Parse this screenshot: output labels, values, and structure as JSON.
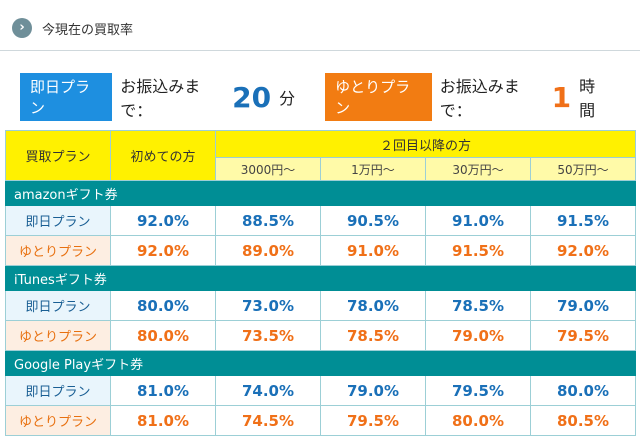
{
  "header": {
    "title": "今現在の買取率"
  },
  "plans": [
    {
      "label": "即日プラン",
      "text": "お振込みまで：",
      "num": "20",
      "unit": "分"
    },
    {
      "label": "ゆとりプラン",
      "text": "お振込みまで：",
      "num": "1",
      "unit": "時間"
    }
  ],
  "table": {
    "col_plan": "買取プラン",
    "col_first": "初めての方",
    "col_group": "２回目以降の方",
    "subs": [
      "3000円～",
      "1万円～",
      "30万円～",
      "50万円～"
    ],
    "sections": [
      {
        "name": "amazonギフト券",
        "rows": [
          {
            "plan": "即日プラン",
            "rates": [
              "92.0%",
              "88.5%",
              "90.5%",
              "91.0%",
              "91.5%"
            ]
          },
          {
            "plan": "ゆとりプラン",
            "rates": [
              "92.0%",
              "89.0%",
              "91.0%",
              "91.5%",
              "92.0%"
            ]
          }
        ]
      },
      {
        "name": "iTunesギフト券",
        "rows": [
          {
            "plan": "即日プラン",
            "rates": [
              "80.0%",
              "73.0%",
              "78.0%",
              "78.5%",
              "79.0%"
            ]
          },
          {
            "plan": "ゆとりプラン",
            "rates": [
              "80.0%",
              "73.5%",
              "78.5%",
              "79.0%",
              "79.5%"
            ]
          }
        ]
      },
      {
        "name": "Google Playギフト券",
        "rows": [
          {
            "plan": "即日プラン",
            "rates": [
              "81.0%",
              "74.0%",
              "79.0%",
              "79.5%",
              "80.0%"
            ]
          },
          {
            "plan": "ゆとりプラン",
            "rates": [
              "81.0%",
              "74.5%",
              "79.5%",
              "80.0%",
              "80.5%"
            ]
          }
        ]
      }
    ]
  }
}
